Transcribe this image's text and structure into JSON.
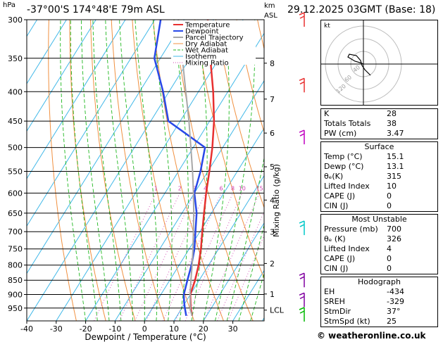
{
  "header": {
    "location": "-37°00'S 174°48'E 79m ASL",
    "datetime": "29.12.2025 03GMT (Base: 18)",
    "pressure_unit": "hPa",
    "height_unit_km": "km",
    "height_unit_asl": "ASL"
  },
  "chart_data": {
    "type": "line",
    "title": "-37°00'S 174°48'E 79m ASL",
    "xlabel": "Dewpoint / Temperature (°C)",
    "ylabel": "hPa",
    "secondary_ylabel": "Mixing Ratio (g/kg)",
    "xlim": [
      -40,
      40
    ],
    "ylim": [
      1000,
      300
    ],
    "x_ticks": [
      -40,
      -30,
      -20,
      -10,
      0,
      10,
      20,
      30
    ],
    "pressure_ticks": [
      300,
      350,
      400,
      450,
      500,
      550,
      600,
      650,
      700,
      750,
      800,
      850,
      900,
      950
    ],
    "height_km_ticks": [
      {
        "label": "8",
        "p": 357
      },
      {
        "label": "7",
        "p": 412
      },
      {
        "label": "6",
        "p": 472
      },
      {
        "label": "5",
        "p": 540
      },
      {
        "label": "4",
        "p": 617
      },
      {
        "label": "3",
        "p": 701
      },
      {
        "label": "2",
        "p": 795
      },
      {
        "label": "1",
        "p": 898
      },
      {
        "label": "LCL",
        "p": 958
      }
    ],
    "mixing_ratio_labels": [
      "1",
      "2",
      "3",
      "4",
      "6",
      "8",
      "10",
      "15",
      "20",
      "25"
    ],
    "mixing_ratio_values": [
      1,
      2,
      3,
      4,
      6,
      8,
      10,
      15,
      20,
      25
    ],
    "legend": [
      "Temperature",
      "Dewpoint",
      "Parcel Trajectory",
      "Dry Adiabat",
      "Wet Adiabat",
      "Isotherm",
      "Mixing Ratio"
    ],
    "series": [
      {
        "name": "Temperature",
        "color": "#e83030",
        "points": [
          {
            "p": 980,
            "t": 15.1
          },
          {
            "p": 950,
            "t": 13.0
          },
          {
            "p": 925,
            "t": 11.5
          },
          {
            "p": 900,
            "t": 10.0
          },
          {
            "p": 850,
            "t": 8.6
          },
          {
            "p": 800,
            "t": 6.6
          },
          {
            "p": 750,
            "t": 4.0
          },
          {
            "p": 700,
            "t": 0.8
          },
          {
            "p": 650,
            "t": -2.5
          },
          {
            "p": 600,
            "t": -6.0
          },
          {
            "p": 550,
            "t": -9.5
          },
          {
            "p": 500,
            "t": -13.5
          },
          {
            "p": 450,
            "t": -18.5
          },
          {
            "p": 400,
            "t": -25.0
          },
          {
            "p": 350,
            "t": -33.0
          },
          {
            "p": 300,
            "t": -42.0
          }
        ]
      },
      {
        "name": "Dewpoint",
        "color": "#2848e8",
        "points": [
          {
            "p": 980,
            "t": 13.1
          },
          {
            "p": 950,
            "t": 11.0
          },
          {
            "p": 925,
            "t": 9.3
          },
          {
            "p": 900,
            "t": 7.8
          },
          {
            "p": 850,
            "t": 6.0
          },
          {
            "p": 800,
            "t": 4.2
          },
          {
            "p": 750,
            "t": 1.8
          },
          {
            "p": 700,
            "t": -1.5
          },
          {
            "p": 650,
            "t": -5.0
          },
          {
            "p": 600,
            "t": -10.0
          },
          {
            "p": 550,
            "t": -12.5
          },
          {
            "p": 500,
            "t": -16.0
          },
          {
            "p": 450,
            "t": -34.0
          },
          {
            "p": 400,
            "t": -42.0
          },
          {
            "p": 350,
            "t": -52.0
          },
          {
            "p": 300,
            "t": -58.0
          }
        ]
      },
      {
        "name": "Parcel Trajectory",
        "color": "#a8a8a8",
        "points": [
          {
            "p": 980,
            "t": 15.1
          },
          {
            "p": 958,
            "t": 13.3
          },
          {
            "p": 900,
            "t": 9.9
          },
          {
            "p": 850,
            "t": 7.2
          },
          {
            "p": 800,
            "t": 4.4
          },
          {
            "p": 750,
            "t": 1.3
          },
          {
            "p": 700,
            "t": -2.2
          },
          {
            "p": 650,
            "t": -6.0
          },
          {
            "p": 600,
            "t": -10.3
          },
          {
            "p": 550,
            "t": -15.2
          },
          {
            "p": 500,
            "t": -20.8
          },
          {
            "p": 450,
            "t": -27.0
          },
          {
            "p": 400,
            "t": -34.3
          },
          {
            "p": 350,
            "t": -42.5
          },
          {
            "p": 300,
            "t": -52.0
          }
        ]
      }
    ],
    "wind_barbs": [
      {
        "p": 300,
        "color": "#e83030"
      },
      {
        "p": 390,
        "color": "#e83030"
      },
      {
        "p": 480,
        "color": "#c000c0"
      },
      {
        "p": 690,
        "color": "#00c8c8"
      },
      {
        "p": 850,
        "color": "#8000a0"
      },
      {
        "p": 920,
        "color": "#8000a0"
      },
      {
        "p": 975,
        "color": "#00b800"
      }
    ]
  },
  "hodograph": {
    "unit": "kt",
    "ring_labels": [
      "40",
      "60",
      "120"
    ]
  },
  "indices": {
    "rows": [
      {
        "label": "K",
        "value": "28"
      },
      {
        "label": "Totals Totals",
        "value": "38"
      },
      {
        "label": "PW (cm)",
        "value": "3.47"
      }
    ]
  },
  "surface": {
    "title": "Surface",
    "rows": [
      {
        "label": "Temp (°C)",
        "value": "15.1"
      },
      {
        "label": "Dewp (°C)",
        "value": "13.1"
      },
      {
        "label": "θₑ(K)",
        "value": "315"
      },
      {
        "label": "Lifted Index",
        "value": "10"
      },
      {
        "label": "CAPE (J)",
        "value": "0"
      },
      {
        "label": "CIN (J)",
        "value": "0"
      }
    ]
  },
  "most_unstable": {
    "title": "Most Unstable",
    "rows": [
      {
        "label": "Pressure (mb)",
        "value": "700"
      },
      {
        "label": "θₑ (K)",
        "value": "326"
      },
      {
        "label": "Lifted Index",
        "value": "4"
      },
      {
        "label": "CAPE (J)",
        "value": "0"
      },
      {
        "label": "CIN (J)",
        "value": "0"
      }
    ]
  },
  "hodo_table": {
    "title": "Hodograph",
    "rows": [
      {
        "label": "EH",
        "value": "-434"
      },
      {
        "label": "SREH",
        "value": "-329"
      },
      {
        "label": "StmDir",
        "value": "37°"
      },
      {
        "label": "StmSpd (kt)",
        "value": "25"
      }
    ]
  },
  "credit": "© weatheronline.co.uk"
}
